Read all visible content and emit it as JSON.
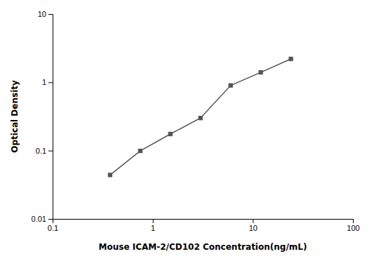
{
  "chart_data": {
    "type": "line",
    "x": [
      0.375,
      0.75,
      1.5,
      3.0,
      6.0,
      12.0,
      24.0
    ],
    "values": [
      0.044,
      0.099,
      0.175,
      0.3,
      0.9,
      1.4,
      2.2
    ],
    "xlabel": "Mouse ICAM-2/CD102 Concentration(ng/mL)",
    "ylabel": "Optical Density",
    "xlim": [
      0.1,
      100
    ],
    "ylim": [
      0.01,
      10
    ],
    "xticks": [
      0.1,
      1,
      10,
      100
    ],
    "yticks": [
      0.01,
      0.1,
      1,
      10
    ],
    "log": true,
    "marker": "square",
    "color": "#555555",
    "grid": false
  }
}
